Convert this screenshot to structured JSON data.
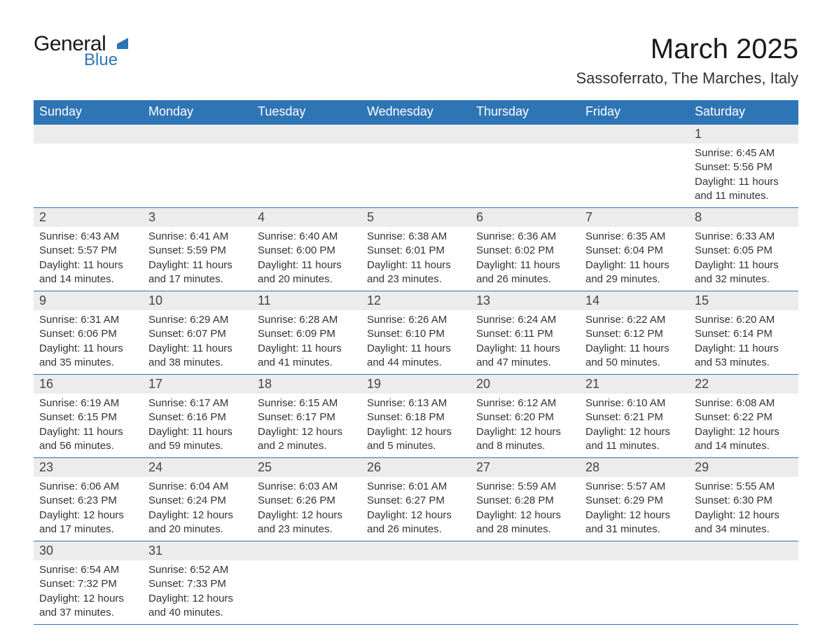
{
  "logo": {
    "text_general": "General",
    "text_blue": "Blue",
    "triangle_color": "#2e75b6"
  },
  "title": "March 2025",
  "location": "Sassoferrato, The Marches, Italy",
  "header_bg": "#2e75b6",
  "daynum_bg": "#ececec",
  "weekdays": [
    "Sunday",
    "Monday",
    "Tuesday",
    "Wednesday",
    "Thursday",
    "Friday",
    "Saturday"
  ],
  "weeks": [
    [
      null,
      null,
      null,
      null,
      null,
      null,
      {
        "num": "1",
        "sunrise": "Sunrise: 6:45 AM",
        "sunset": "Sunset: 5:56 PM",
        "daylight": "Daylight: 11 hours and 11 minutes."
      }
    ],
    [
      {
        "num": "2",
        "sunrise": "Sunrise: 6:43 AM",
        "sunset": "Sunset: 5:57 PM",
        "daylight": "Daylight: 11 hours and 14 minutes."
      },
      {
        "num": "3",
        "sunrise": "Sunrise: 6:41 AM",
        "sunset": "Sunset: 5:59 PM",
        "daylight": "Daylight: 11 hours and 17 minutes."
      },
      {
        "num": "4",
        "sunrise": "Sunrise: 6:40 AM",
        "sunset": "Sunset: 6:00 PM",
        "daylight": "Daylight: 11 hours and 20 minutes."
      },
      {
        "num": "5",
        "sunrise": "Sunrise: 6:38 AM",
        "sunset": "Sunset: 6:01 PM",
        "daylight": "Daylight: 11 hours and 23 minutes."
      },
      {
        "num": "6",
        "sunrise": "Sunrise: 6:36 AM",
        "sunset": "Sunset: 6:02 PM",
        "daylight": "Daylight: 11 hours and 26 minutes."
      },
      {
        "num": "7",
        "sunrise": "Sunrise: 6:35 AM",
        "sunset": "Sunset: 6:04 PM",
        "daylight": "Daylight: 11 hours and 29 minutes."
      },
      {
        "num": "8",
        "sunrise": "Sunrise: 6:33 AM",
        "sunset": "Sunset: 6:05 PM",
        "daylight": "Daylight: 11 hours and 32 minutes."
      }
    ],
    [
      {
        "num": "9",
        "sunrise": "Sunrise: 6:31 AM",
        "sunset": "Sunset: 6:06 PM",
        "daylight": "Daylight: 11 hours and 35 minutes."
      },
      {
        "num": "10",
        "sunrise": "Sunrise: 6:29 AM",
        "sunset": "Sunset: 6:07 PM",
        "daylight": "Daylight: 11 hours and 38 minutes."
      },
      {
        "num": "11",
        "sunrise": "Sunrise: 6:28 AM",
        "sunset": "Sunset: 6:09 PM",
        "daylight": "Daylight: 11 hours and 41 minutes."
      },
      {
        "num": "12",
        "sunrise": "Sunrise: 6:26 AM",
        "sunset": "Sunset: 6:10 PM",
        "daylight": "Daylight: 11 hours and 44 minutes."
      },
      {
        "num": "13",
        "sunrise": "Sunrise: 6:24 AM",
        "sunset": "Sunset: 6:11 PM",
        "daylight": "Daylight: 11 hours and 47 minutes."
      },
      {
        "num": "14",
        "sunrise": "Sunrise: 6:22 AM",
        "sunset": "Sunset: 6:12 PM",
        "daylight": "Daylight: 11 hours and 50 minutes."
      },
      {
        "num": "15",
        "sunrise": "Sunrise: 6:20 AM",
        "sunset": "Sunset: 6:14 PM",
        "daylight": "Daylight: 11 hours and 53 minutes."
      }
    ],
    [
      {
        "num": "16",
        "sunrise": "Sunrise: 6:19 AM",
        "sunset": "Sunset: 6:15 PM",
        "daylight": "Daylight: 11 hours and 56 minutes."
      },
      {
        "num": "17",
        "sunrise": "Sunrise: 6:17 AM",
        "sunset": "Sunset: 6:16 PM",
        "daylight": "Daylight: 11 hours and 59 minutes."
      },
      {
        "num": "18",
        "sunrise": "Sunrise: 6:15 AM",
        "sunset": "Sunset: 6:17 PM",
        "daylight": "Daylight: 12 hours and 2 minutes."
      },
      {
        "num": "19",
        "sunrise": "Sunrise: 6:13 AM",
        "sunset": "Sunset: 6:18 PM",
        "daylight": "Daylight: 12 hours and 5 minutes."
      },
      {
        "num": "20",
        "sunrise": "Sunrise: 6:12 AM",
        "sunset": "Sunset: 6:20 PM",
        "daylight": "Daylight: 12 hours and 8 minutes."
      },
      {
        "num": "21",
        "sunrise": "Sunrise: 6:10 AM",
        "sunset": "Sunset: 6:21 PM",
        "daylight": "Daylight: 12 hours and 11 minutes."
      },
      {
        "num": "22",
        "sunrise": "Sunrise: 6:08 AM",
        "sunset": "Sunset: 6:22 PM",
        "daylight": "Daylight: 12 hours and 14 minutes."
      }
    ],
    [
      {
        "num": "23",
        "sunrise": "Sunrise: 6:06 AM",
        "sunset": "Sunset: 6:23 PM",
        "daylight": "Daylight: 12 hours and 17 minutes."
      },
      {
        "num": "24",
        "sunrise": "Sunrise: 6:04 AM",
        "sunset": "Sunset: 6:24 PM",
        "daylight": "Daylight: 12 hours and 20 minutes."
      },
      {
        "num": "25",
        "sunrise": "Sunrise: 6:03 AM",
        "sunset": "Sunset: 6:26 PM",
        "daylight": "Daylight: 12 hours and 23 minutes."
      },
      {
        "num": "26",
        "sunrise": "Sunrise: 6:01 AM",
        "sunset": "Sunset: 6:27 PM",
        "daylight": "Daylight: 12 hours and 26 minutes."
      },
      {
        "num": "27",
        "sunrise": "Sunrise: 5:59 AM",
        "sunset": "Sunset: 6:28 PM",
        "daylight": "Daylight: 12 hours and 28 minutes."
      },
      {
        "num": "28",
        "sunrise": "Sunrise: 5:57 AM",
        "sunset": "Sunset: 6:29 PM",
        "daylight": "Daylight: 12 hours and 31 minutes."
      },
      {
        "num": "29",
        "sunrise": "Sunrise: 5:55 AM",
        "sunset": "Sunset: 6:30 PM",
        "daylight": "Daylight: 12 hours and 34 minutes."
      }
    ],
    [
      {
        "num": "30",
        "sunrise": "Sunrise: 6:54 AM",
        "sunset": "Sunset: 7:32 PM",
        "daylight": "Daylight: 12 hours and 37 minutes."
      },
      {
        "num": "31",
        "sunrise": "Sunrise: 6:52 AM",
        "sunset": "Sunset: 7:33 PM",
        "daylight": "Daylight: 12 hours and 40 minutes."
      },
      null,
      null,
      null,
      null,
      null
    ]
  ]
}
